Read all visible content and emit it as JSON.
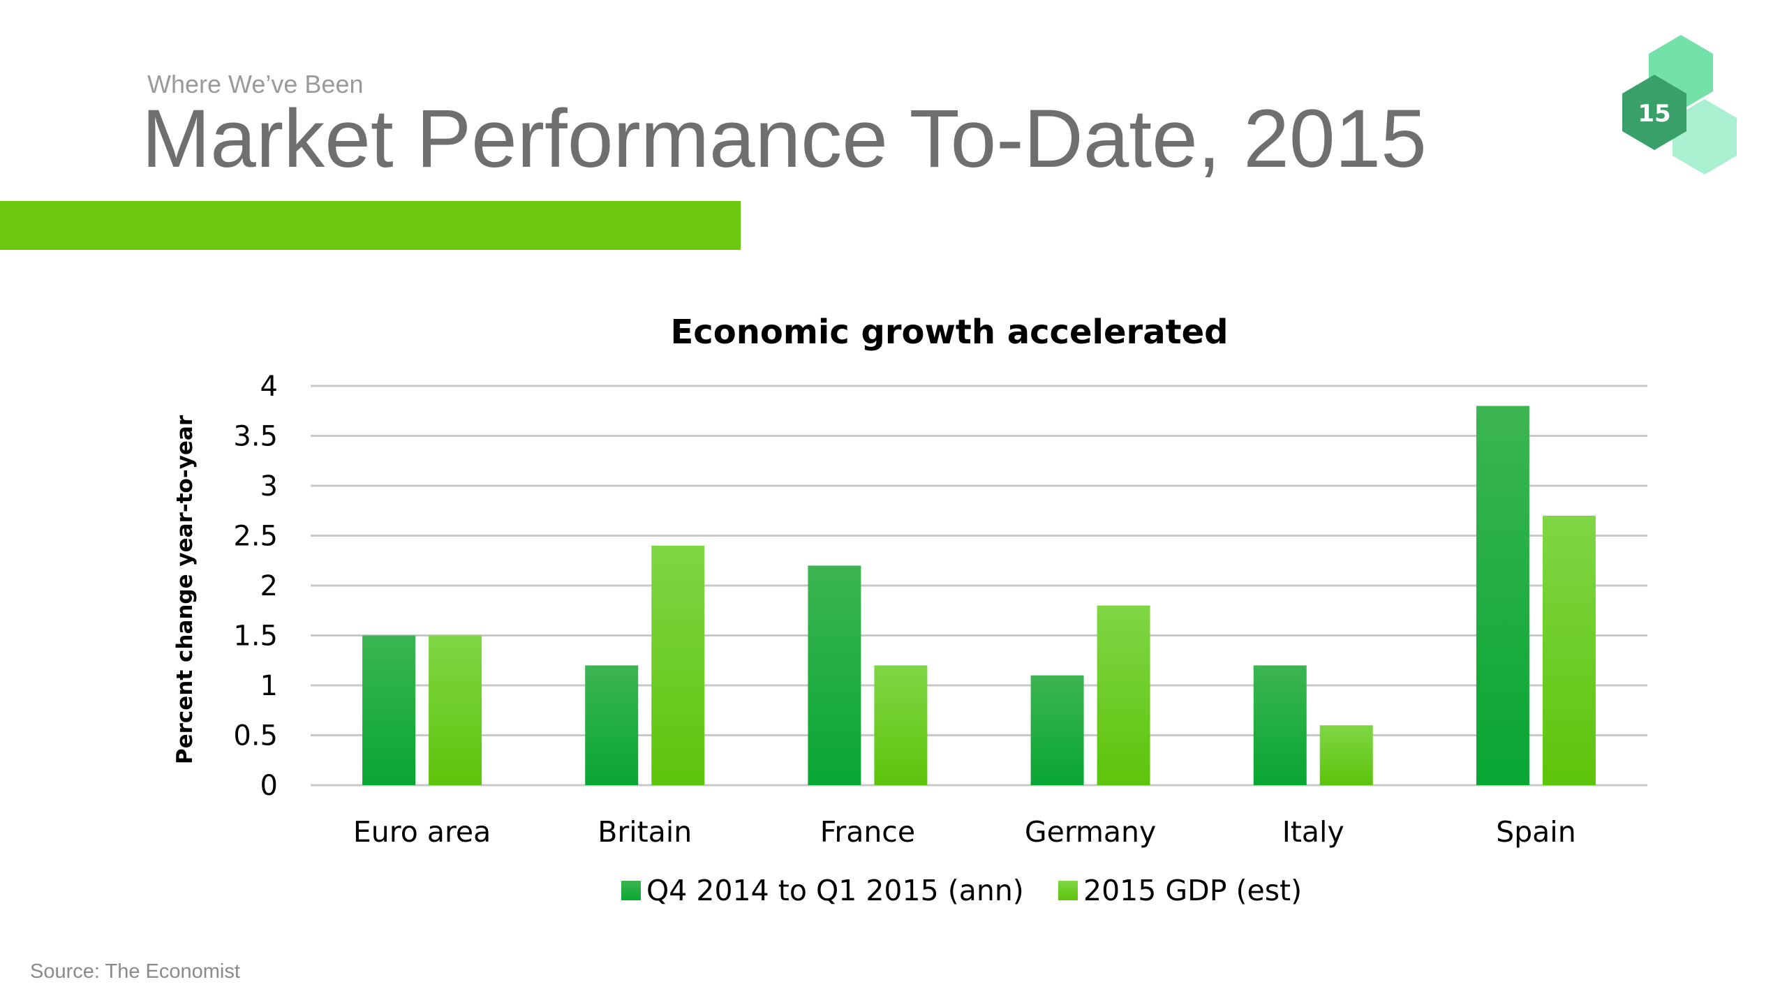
{
  "slide": {
    "kicker": "Where We’ve Been",
    "title": "Market Performance To-Date, 2015",
    "badge_number": "15",
    "source": "Source: The Economist"
  },
  "colors": {
    "accent": "#6cc80e",
    "series_dark_top": "#3cb552",
    "series_dark_bottom": "#08a632",
    "series_light_top": "#7fd645",
    "series_light_bottom": "#5dc40b",
    "badge_dark": "#3aa06a",
    "badge_mid": "#74e2a8",
    "badge_light": "#a8f0cf",
    "grid": "#c8c8c8"
  },
  "chart_data": {
    "type": "bar",
    "title": "Economic growth accelerated",
    "ylabel": "Percent change year-to-year",
    "xlabel": "",
    "ylim": [
      0,
      4
    ],
    "yticks": [
      "0",
      "0.5",
      "1",
      "1.5",
      "2",
      "2.5",
      "3",
      "3.5",
      "4"
    ],
    "grid": true,
    "legend": "bottom",
    "categories": [
      "Euro area",
      "Britain",
      "France",
      "Germany",
      "Italy",
      "Spain"
    ],
    "series": [
      {
        "name": "Q4 2014 to Q1 2015 (ann)",
        "values": [
          1.5,
          1.2,
          2.2,
          1.1,
          1.2,
          3.8
        ]
      },
      {
        "name": "2015 GDP (est)",
        "values": [
          1.5,
          2.4,
          1.2,
          1.8,
          0.6,
          2.7
        ]
      }
    ]
  }
}
